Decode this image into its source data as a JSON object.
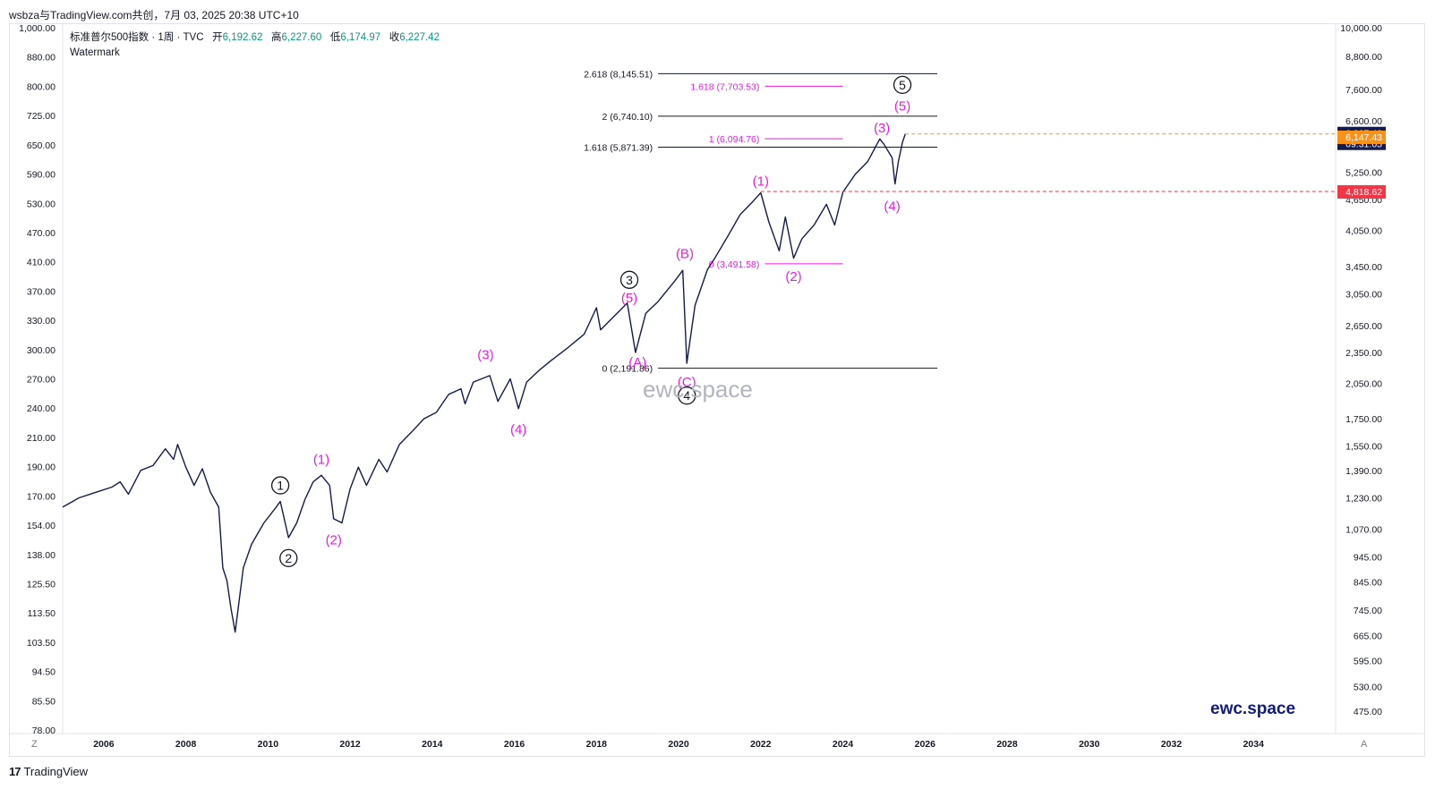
{
  "header": {
    "caption": "wsbza与TradingView.com共创，7月 03, 2025 20:38 UTC+10"
  },
  "legend": {
    "symbol": "标准普尔500指数 · 1周 · TVC",
    "open_label": "开",
    "open": "6,192.62",
    "high_label": "高",
    "high": "6,227.60",
    "low_label": "低",
    "low": "6,174.97",
    "close_label": "收",
    "close": "6,227.42",
    "watermark_label": "Watermark"
  },
  "watermark_text": "ewc.space",
  "brand_text": "ewc.space",
  "footer": {
    "logo_mark": "17",
    "logo_text": "TradingView",
    "z_button": "Z",
    "a_button": "A"
  },
  "chart_data": {
    "type": "line",
    "title": "",
    "scale": "log",
    "x_range": [
      2005.0,
      2036.0
    ],
    "y_right_range": [
      430,
      10200
    ],
    "x_ticks": [
      "2006",
      "2008",
      "2010",
      "2012",
      "2014",
      "2016",
      "2018",
      "2020",
      "2022",
      "2024",
      "2026",
      "2028",
      "2030",
      "2032",
      "2034"
    ],
    "left_axis_ticks": [
      "1,000.00",
      "880.00",
      "800.00",
      "725.00",
      "650.00",
      "590.00",
      "530.00",
      "470.00",
      "410.00",
      "370.00",
      "330.00",
      "300.00",
      "270.00",
      "240.00",
      "210.00",
      "190.00",
      "170.00",
      "154.00",
      "138.00",
      "125.50",
      "113.50",
      "103.50",
      "94.50",
      "85.50",
      "78.00"
    ],
    "right_axis_ticks": [
      {
        "label": "10,000.00",
        "value": 10000
      },
      {
        "label": "8,800.00",
        "value": 8800
      },
      {
        "label": "7,600.00",
        "value": 7600
      },
      {
        "label": "6,600.00",
        "value": 6600
      },
      {
        "label": "5,250.00",
        "value": 5250
      },
      {
        "label": "4,650.00",
        "value": 4650
      },
      {
        "label": "4,050.00",
        "value": 4050
      },
      {
        "label": "3,450.00",
        "value": 3450
      },
      {
        "label": "3,050.00",
        "value": 3050
      },
      {
        "label": "2,650.00",
        "value": 2650
      },
      {
        "label": "2,350.00",
        "value": 2350
      },
      {
        "label": "2,050.00",
        "value": 2050
      },
      {
        "label": "1,750.00",
        "value": 1750
      },
      {
        "label": "1,550.00",
        "value": 1550
      },
      {
        "label": "1,390.00",
        "value": 1390
      },
      {
        "label": "1,230.00",
        "value": 1230
      },
      {
        "label": "1,070.00",
        "value": 1070
      },
      {
        "label": "945.00",
        "value": 945
      },
      {
        "label": "845.00",
        "value": 845
      },
      {
        "label": "745.00",
        "value": 745
      },
      {
        "label": "665.00",
        "value": 665
      },
      {
        "label": "595.00",
        "value": 595
      },
      {
        "label": "530.00",
        "value": 530
      },
      {
        "label": "475.00",
        "value": 475
      }
    ],
    "series": [
      {
        "points": [
          [
            2005.0,
            1180
          ],
          [
            2005.4,
            1230
          ],
          [
            2005.8,
            1260
          ],
          [
            2006.2,
            1290
          ],
          [
            2006.4,
            1320
          ],
          [
            2006.6,
            1250
          ],
          [
            2006.9,
            1390
          ],
          [
            2007.2,
            1420
          ],
          [
            2007.5,
            1530
          ],
          [
            2007.7,
            1460
          ],
          [
            2007.8,
            1560
          ],
          [
            2008.0,
            1410
          ],
          [
            2008.2,
            1300
          ],
          [
            2008.4,
            1400
          ],
          [
            2008.6,
            1260
          ],
          [
            2008.8,
            1180
          ],
          [
            2008.9,
            900
          ],
          [
            2009.0,
            850
          ],
          [
            2009.1,
            750
          ],
          [
            2009.2,
            676
          ],
          [
            2009.4,
            900
          ],
          [
            2009.6,
            1000
          ],
          [
            2009.9,
            1100
          ],
          [
            2010.2,
            1180
          ],
          [
            2010.3,
            1210
          ],
          [
            2010.5,
            1030
          ],
          [
            2010.7,
            1100
          ],
          [
            2010.9,
            1220
          ],
          [
            2011.1,
            1320
          ],
          [
            2011.3,
            1360
          ],
          [
            2011.5,
            1300
          ],
          [
            2011.6,
            1120
          ],
          [
            2011.8,
            1100
          ],
          [
            2012.0,
            1280
          ],
          [
            2012.2,
            1410
          ],
          [
            2012.4,
            1300
          ],
          [
            2012.7,
            1460
          ],
          [
            2012.9,
            1380
          ],
          [
            2013.2,
            1560
          ],
          [
            2013.5,
            1650
          ],
          [
            2013.8,
            1750
          ],
          [
            2014.1,
            1800
          ],
          [
            2014.4,
            1950
          ],
          [
            2014.7,
            2000
          ],
          [
            2014.8,
            1870
          ],
          [
            2015.0,
            2060
          ],
          [
            2015.4,
            2120
          ],
          [
            2015.6,
            1890
          ],
          [
            2015.9,
            2090
          ],
          [
            2016.1,
            1830
          ],
          [
            2016.3,
            2060
          ],
          [
            2016.6,
            2170
          ],
          [
            2016.9,
            2270
          ],
          [
            2017.3,
            2400
          ],
          [
            2017.7,
            2550
          ],
          [
            2018.0,
            2870
          ],
          [
            2018.1,
            2600
          ],
          [
            2018.5,
            2800
          ],
          [
            2018.75,
            2930
          ],
          [
            2018.95,
            2350
          ],
          [
            2019.2,
            2800
          ],
          [
            2019.5,
            2950
          ],
          [
            2019.9,
            3230
          ],
          [
            2020.1,
            3390
          ],
          [
            2020.2,
            2240
          ],
          [
            2020.4,
            2900
          ],
          [
            2020.7,
            3400
          ],
          [
            2020.9,
            3600
          ],
          [
            2021.2,
            3950
          ],
          [
            2021.5,
            4350
          ],
          [
            2021.8,
            4600
          ],
          [
            2022.0,
            4790
          ],
          [
            2022.2,
            4200
          ],
          [
            2022.45,
            3700
          ],
          [
            2022.6,
            4300
          ],
          [
            2022.8,
            3580
          ],
          [
            2023.0,
            3900
          ],
          [
            2023.3,
            4150
          ],
          [
            2023.6,
            4550
          ],
          [
            2023.8,
            4150
          ],
          [
            2024.0,
            4800
          ],
          [
            2024.3,
            5200
          ],
          [
            2024.6,
            5500
          ],
          [
            2024.9,
            6090
          ],
          [
            2025.0,
            5950
          ],
          [
            2025.2,
            5600
          ],
          [
            2025.27,
            4982
          ],
          [
            2025.35,
            5500
          ],
          [
            2025.45,
            6000
          ],
          [
            2025.52,
            6227
          ]
        ]
      }
    ],
    "fib_levels": [
      {
        "label": "2.618 (8,145.51)",
        "value": 8145.51,
        "color": "#131722"
      },
      {
        "label": "1.618 (7,703.53)",
        "value": 7703.53,
        "color": "#e91ee0"
      },
      {
        "label": "2 (6,740.10)",
        "value": 6740.1,
        "color": "#131722"
      },
      {
        "label": "1 (6,094.76)",
        "value": 6094.76,
        "color": "#e91ee0"
      },
      {
        "label": "1.618 (5,871.39)",
        "value": 5871.39,
        "color": "#131722"
      },
      {
        "label": "0 (3,491.58)",
        "value": 3491.58,
        "color": "#e91ee0"
      },
      {
        "label": "0 (2,191.86)",
        "value": 2191.86,
        "color": "#131722"
      }
    ],
    "price_tags": [
      {
        "label": "6,227.42",
        "value": 6227.42,
        "color": "#131b4d",
        "sub": "09:31:05"
      },
      {
        "label": "6,147.43",
        "value": 6147.43,
        "color": "#f7931a"
      },
      {
        "label": "4,818.62",
        "value": 4818.62,
        "color": "#f23645"
      }
    ],
    "wave_labels": [
      {
        "text": "1",
        "circled": true,
        "x": 2010.3,
        "y": 1300
      },
      {
        "text": "2",
        "circled": true,
        "x": 2010.5,
        "y": 940
      },
      {
        "text": "(1)",
        "x": 2011.3,
        "y": 1460
      },
      {
        "text": "(2)",
        "x": 2011.6,
        "y": 1020
      },
      {
        "text": "(3)",
        "x": 2015.3,
        "y": 2330
      },
      {
        "text": "(4)",
        "x": 2016.1,
        "y": 1670
      },
      {
        "text": "3",
        "circled": true,
        "x": 2018.8,
        "y": 3250
      },
      {
        "text": "(5)",
        "x": 2018.8,
        "y": 3000
      },
      {
        "text": "(A)",
        "x": 2019.0,
        "y": 2250
      },
      {
        "text": "(B)",
        "x": 2020.15,
        "y": 3650
      },
      {
        "text": "(C)",
        "x": 2020.2,
        "y": 2060
      },
      {
        "text": "4",
        "circled": true,
        "x": 2020.2,
        "y": 1940
      },
      {
        "text": "(1)",
        "x": 2022.0,
        "y": 5050
      },
      {
        "text": "(2)",
        "x": 2022.8,
        "y": 3300
      },
      {
        "text": "(3)",
        "x": 2024.95,
        "y": 6400
      },
      {
        "text": "(4)",
        "x": 2025.2,
        "y": 4510
      },
      {
        "text": "5",
        "circled": true,
        "x": 2025.45,
        "y": 7750
      },
      {
        "text": "(5)",
        "x": 2025.45,
        "y": 7050
      }
    ]
  }
}
